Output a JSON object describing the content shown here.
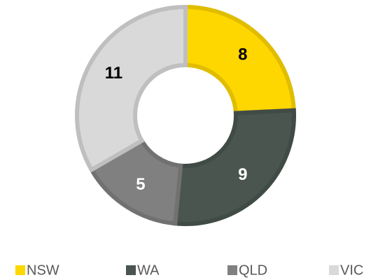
{
  "chart_data": {
    "type": "donut",
    "categories": [
      "NSW",
      "WA",
      "QLD",
      "VIC"
    ],
    "values": [
      8,
      9,
      5,
      11
    ],
    "colors": [
      "#FFD700",
      "#4A5550",
      "#808080",
      "#D9D9D9"
    ],
    "legend": "bottom"
  }
}
